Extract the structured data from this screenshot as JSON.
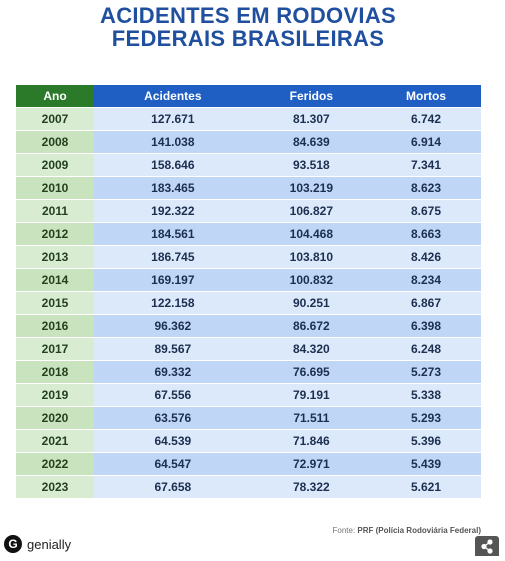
{
  "header": {
    "title_lines": [
      "ACIDENTES EM RODOVIAS",
      "FEDERAIS BRASILEIRAS"
    ]
  },
  "table": {
    "columns": [
      "Ano",
      "Acidentes",
      "Feridos",
      "Mortos"
    ],
    "rows": [
      [
        "2007",
        "127.671",
        "81.307",
        "6.742"
      ],
      [
        "2008",
        "141.038",
        "84.639",
        "6.914"
      ],
      [
        "2009",
        "158.646",
        "93.518",
        "7.341"
      ],
      [
        "2010",
        "183.465",
        "103.219",
        "8.623"
      ],
      [
        "2011",
        "192.322",
        "106.827",
        "8.675"
      ],
      [
        "2012",
        "184.561",
        "104.468",
        "8.663"
      ],
      [
        "2013",
        "186.745",
        "103.810",
        "8.426"
      ],
      [
        "2014",
        "169.197",
        "100.832",
        "8.234"
      ],
      [
        "2015",
        "122.158",
        "90.251",
        "6.867"
      ],
      [
        "2016",
        "96.362",
        "86.672",
        "6.398"
      ],
      [
        "2017",
        "89.567",
        "84.320",
        "6.248"
      ],
      [
        "2018",
        "69.332",
        "76.695",
        "5.273"
      ],
      [
        "2019",
        "67.556",
        "79.191",
        "5.338"
      ],
      [
        "2020",
        "63.576",
        "71.511",
        "5.293"
      ],
      [
        "2021",
        "64.539",
        "71.846",
        "5.396"
      ],
      [
        "2022",
        "64.547",
        "72.971",
        "5.439"
      ],
      [
        "2023",
        "67.658",
        "78.322",
        "5.621"
      ]
    ]
  },
  "footer": {
    "source_label": "Fonte:",
    "source": "PRF (Polícia Rodoviária Federal)",
    "brand": "genially"
  }
}
